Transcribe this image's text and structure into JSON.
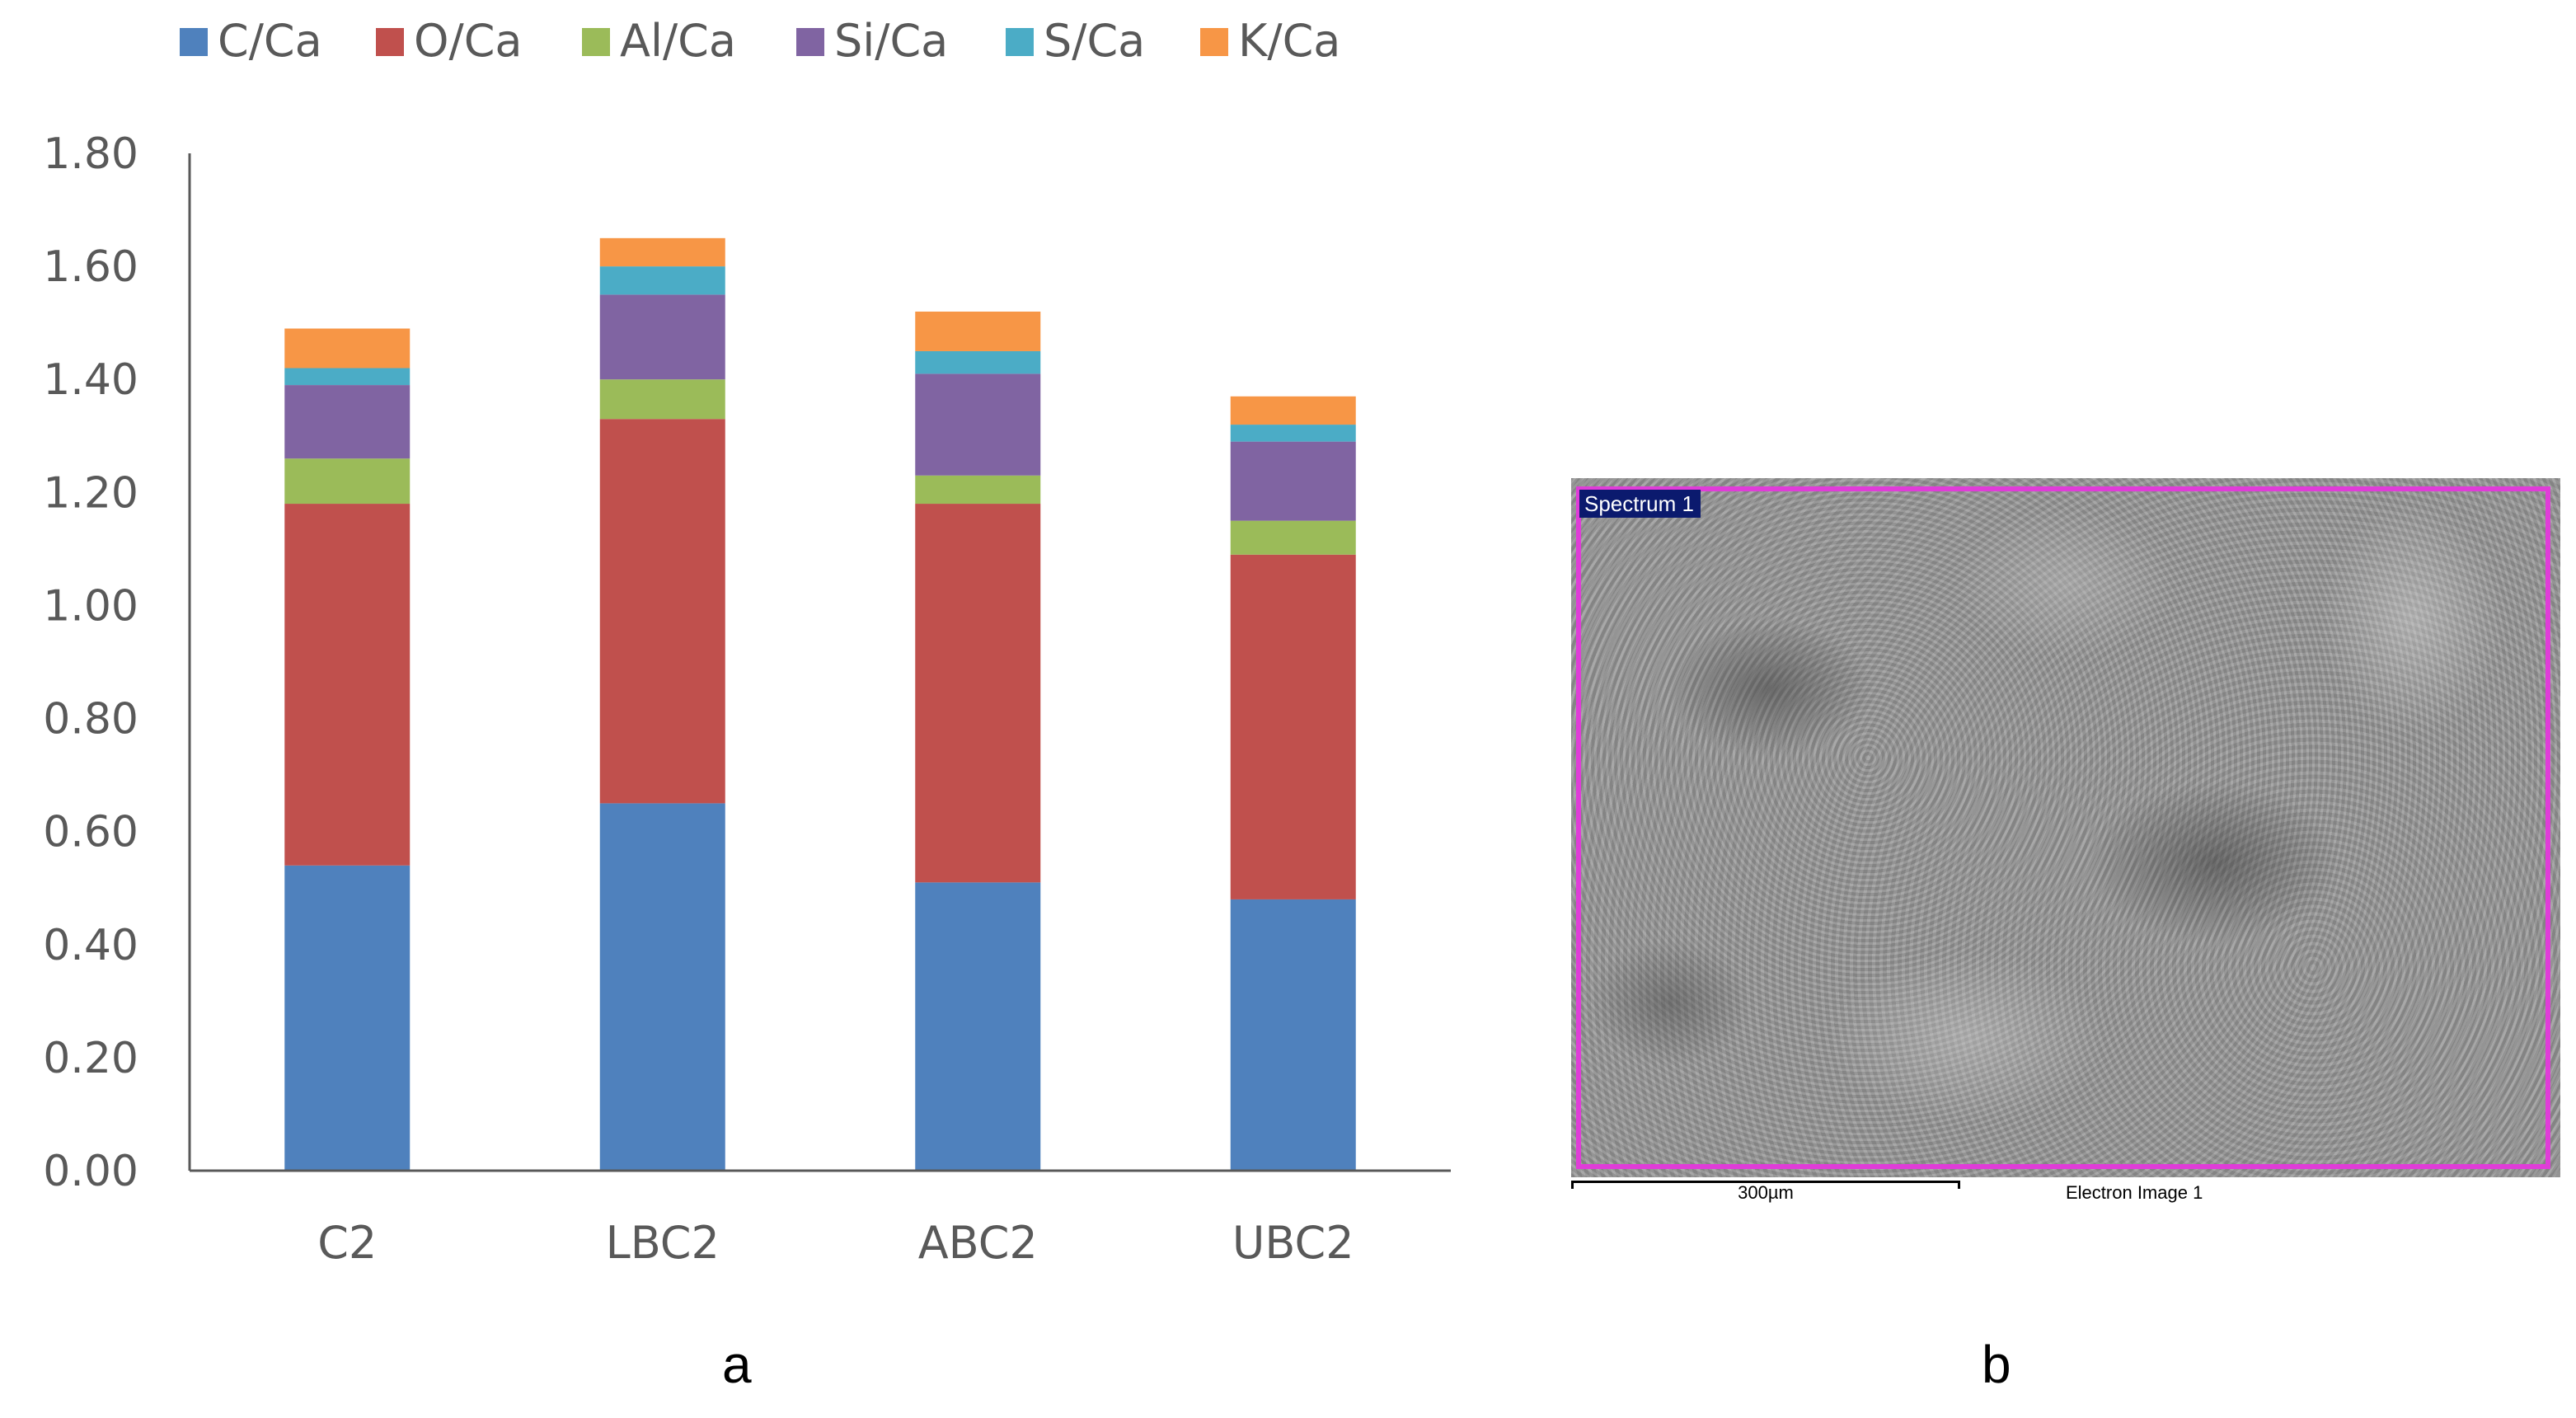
{
  "chart_data": {
    "type": "bar",
    "stacked": true,
    "categories": [
      "C2",
      "LBC2",
      "ABC2",
      "UBC2"
    ],
    "series": [
      {
        "name": "C/Ca",
        "color": "#4f81bd",
        "values": [
          0.54,
          0.65,
          0.51,
          0.48
        ]
      },
      {
        "name": "O/Ca",
        "color": "#c0504d",
        "values": [
          0.64,
          0.68,
          0.67,
          0.61
        ]
      },
      {
        "name": "Al/Ca",
        "color": "#9bbb59",
        "values": [
          0.08,
          0.07,
          0.05,
          0.06
        ]
      },
      {
        "name": "Si/Ca",
        "color": "#8064a2",
        "values": [
          0.13,
          0.15,
          0.18,
          0.14
        ]
      },
      {
        "name": "S/Ca",
        "color": "#4bacc6",
        "values": [
          0.03,
          0.05,
          0.04,
          0.03
        ]
      },
      {
        "name": "K/Ca",
        "color": "#f79646",
        "values": [
          0.07,
          0.05,
          0.07,
          0.05
        ]
      }
    ],
    "ylim": [
      0,
      1.8
    ],
    "yticks": [
      "0.00",
      "0.20",
      "0.40",
      "0.60",
      "0.80",
      "1.00",
      "1.20",
      "1.40",
      "1.60",
      "1.80"
    ],
    "grid": false,
    "legend_position": "top"
  },
  "sem_image": {
    "spectrum_label": "Spectrum 1",
    "scale_label": "300µm",
    "image_label": "Electron Image 1",
    "frame_color": "#e03cd8"
  },
  "captions": {
    "a": "a",
    "b": "b"
  }
}
